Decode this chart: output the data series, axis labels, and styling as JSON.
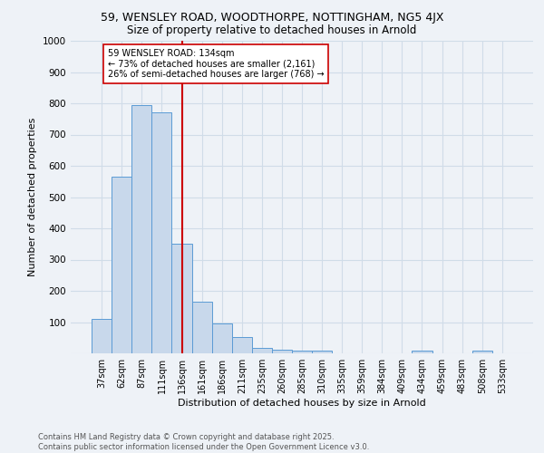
{
  "title1": "59, WENSLEY ROAD, WOODTHORPE, NOTTINGHAM, NG5 4JX",
  "title2": "Size of property relative to detached houses in Arnold",
  "xlabel": "Distribution of detached houses by size in Arnold",
  "ylabel": "Number of detached properties",
  "categories": [
    "37sqm",
    "62sqm",
    "87sqm",
    "111sqm",
    "136sqm",
    "161sqm",
    "186sqm",
    "211sqm",
    "235sqm",
    "260sqm",
    "285sqm",
    "310sqm",
    "335sqm",
    "359sqm",
    "384sqm",
    "409sqm",
    "434sqm",
    "459sqm",
    "483sqm",
    "508sqm",
    "533sqm"
  ],
  "values": [
    110,
    565,
    795,
    770,
    350,
    165,
    95,
    52,
    18,
    12,
    10,
    8,
    0,
    0,
    0,
    0,
    8,
    0,
    0,
    8,
    0
  ],
  "bar_color": "#c8d8eb",
  "bar_edge_color": "#5b9bd5",
  "vline_x": 4,
  "vline_color": "#cc0000",
  "annotation_text": "59 WENSLEY ROAD: 134sqm\n← 73% of detached houses are smaller (2,161)\n26% of semi-detached houses are larger (768) →",
  "annotation_box_color": "#ffffff",
  "annotation_box_edge": "#cc0000",
  "grid_color": "#d0dce8",
  "background_color": "#eef2f7",
  "footer_text": "Contains HM Land Registry data © Crown copyright and database right 2025.\nContains public sector information licensed under the Open Government Licence v3.0.",
  "ylim": [
    0,
    1000
  ],
  "yticks": [
    0,
    100,
    200,
    300,
    400,
    500,
    600,
    700,
    800,
    900,
    1000
  ]
}
